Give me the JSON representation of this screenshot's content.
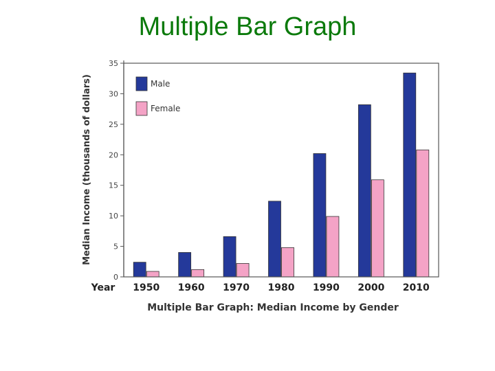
{
  "page": {
    "title": "Multiple Bar Graph"
  },
  "chart_data": {
    "type": "bar",
    "title": "Multiple Bar Graph: Median Income by Gender",
    "xlabel": "Year",
    "ylabel": "Median Income (thousands of dollars)",
    "categories": [
      "1950",
      "1960",
      "1970",
      "1980",
      "1990",
      "2000",
      "2010"
    ],
    "series": [
      {
        "name": "Male",
        "color": "#24399a",
        "values": [
          2.4,
          4.0,
          6.6,
          12.4,
          20.2,
          28.2,
          33.4
        ]
      },
      {
        "name": "Female",
        "color": "#f4a3c6",
        "values": [
          0.9,
          1.2,
          2.2,
          4.8,
          9.9,
          15.9,
          20.8
        ]
      }
    ],
    "ylim": [
      0,
      35
    ],
    "yticks": [
      "0",
      "5",
      "10",
      "15",
      "20",
      "25",
      "30",
      "35"
    ],
    "grid": false,
    "legend_position": "top-left"
  }
}
